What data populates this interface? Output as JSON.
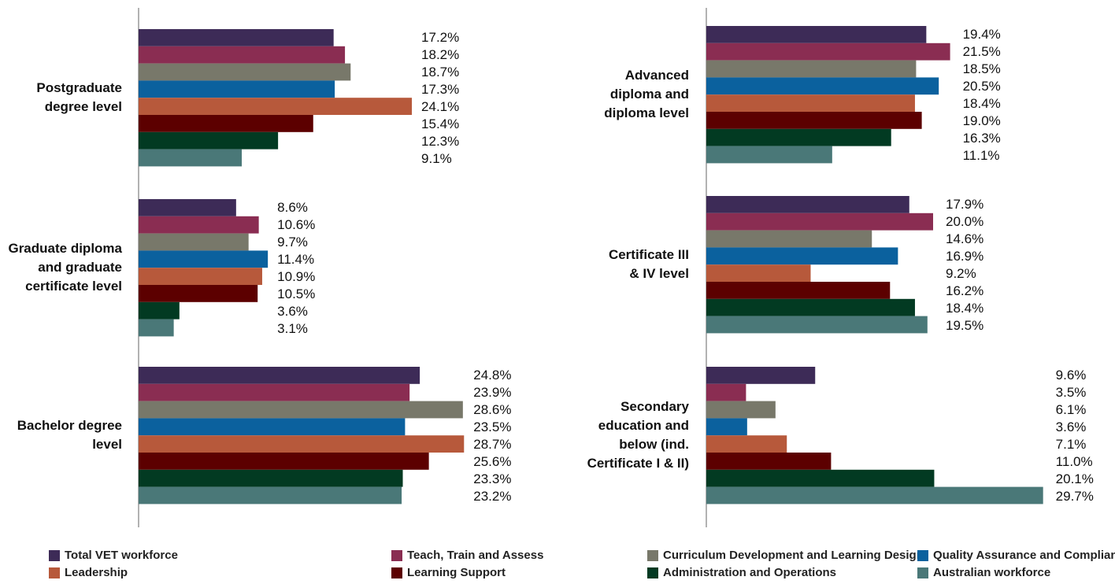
{
  "chart_data": {
    "type": "bar",
    "orientation": "horizontal",
    "categories": [
      "Postgraduate degree level",
      "Graduate diploma and graduate certificate level",
      "Bachelor degree level",
      "Advanced diploma and diploma level",
      "Certificate III & IV level",
      "Secondary education and below (ind. Certificate I & II)"
    ],
    "xlim": [
      0,
      30
    ],
    "series": [
      {
        "name": "Total VET workforce",
        "color": "#3d2b57",
        "values": [
          17.2,
          8.6,
          24.8,
          19.4,
          17.9,
          9.6
        ],
        "value_labels": [
          "17.2%",
          "8.6%",
          "24.8%",
          "19.4%",
          "17.9%",
          "9.6%"
        ]
      },
      {
        "name": "Teach, Train and Assess",
        "color": "#8a2d52",
        "values": [
          18.2,
          10.6,
          23.9,
          21.5,
          20.0,
          3.5
        ],
        "value_labels": [
          "18.2%",
          "10.6%",
          "23.9%",
          "21.5%",
          "20.0%",
          "3.5%"
        ]
      },
      {
        "name": "Curriculum Development and Learning Design",
        "color": "#78786a",
        "values": [
          18.7,
          9.7,
          28.6,
          18.5,
          14.6,
          6.1
        ],
        "value_labels": [
          "18.7%",
          "9.7%",
          "28.6%",
          "18.5%",
          "14.6%",
          "6.1%"
        ]
      },
      {
        "name": "Quality Assurance and Compliance",
        "color": "#0b619e",
        "values": [
          17.3,
          11.4,
          23.5,
          20.5,
          16.9,
          3.6
        ],
        "value_labels": [
          "17.3%",
          "11.4%",
          "23.5%",
          "20.5%",
          "16.9%",
          "3.6%"
        ]
      },
      {
        "name": "Leadership",
        "color": "#b7593b",
        "values": [
          24.1,
          10.9,
          28.7,
          18.4,
          9.2,
          7.1
        ],
        "value_labels": [
          "24.1%",
          "10.9%",
          "28.7%",
          "18.4%",
          "9.2%",
          "7.1%"
        ]
      },
      {
        "name": "Learning Support",
        "color": "#5c0000",
        "values": [
          15.4,
          10.5,
          25.6,
          19.0,
          16.2,
          11.0
        ],
        "value_labels": [
          "15.4%",
          "10.5%",
          "25.6%",
          "19.0%",
          "16.2%",
          "11.0%"
        ]
      },
      {
        "name": "Administration and Operations",
        "color": "#023a22",
        "values": [
          12.3,
          3.6,
          23.3,
          16.3,
          18.4,
          20.1
        ],
        "value_labels": [
          "12.3%",
          "3.6%",
          "23.3%",
          "16.3%",
          "18.4%",
          "20.1%"
        ]
      },
      {
        "name": "Australian workforce",
        "color": "#4a7878",
        "values": [
          9.1,
          3.1,
          23.2,
          11.1,
          19.5,
          29.7
        ],
        "value_labels": [
          "9.1%",
          "3.1%",
          "23.2%",
          "11.1%",
          "19.5%",
          "29.7%"
        ]
      }
    ]
  }
}
